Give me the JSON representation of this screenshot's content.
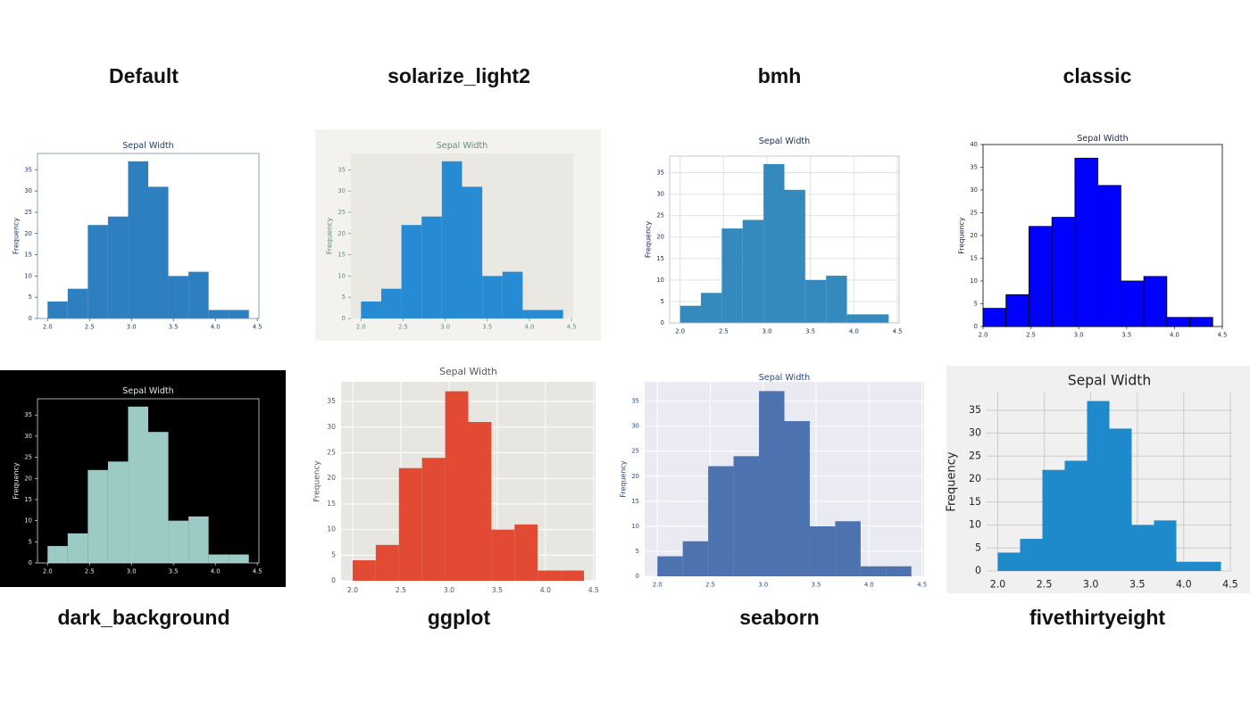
{
  "chart_data": [
    {
      "type": "histogram",
      "caption": "Default",
      "title": "Sepal Width",
      "ylabel": "Frequency",
      "bins": [
        2.0,
        2.24,
        2.48,
        2.72,
        2.96,
        3.2,
        3.44,
        3.68,
        3.92,
        4.16,
        4.4
      ],
      "values": [
        4,
        7,
        22,
        24,
        37,
        31,
        10,
        11,
        2,
        2
      ],
      "xlim": [
        1.88,
        4.52
      ],
      "ylim": [
        0,
        38.85
      ],
      "xticks": [
        {
          "value": 2,
          "label": "2.0"
        },
        {
          "value": 2.5,
          "label": "2.5"
        },
        {
          "value": 3,
          "label": "3.0"
        },
        {
          "value": 3.5,
          "label": "3.5"
        },
        {
          "value": 4,
          "label": "4.0"
        },
        {
          "value": 4.5,
          "label": "4.5"
        }
      ],
      "yticks": [
        0,
        5,
        10,
        15,
        20,
        25,
        30,
        35
      ],
      "grid": false,
      "color": "#2e7fc0",
      "edge_color": null,
      "figure_color": "#ffffff",
      "axes_color": "#ffffff",
      "text_color": "#1f3f66"
    },
    {
      "type": "histogram",
      "caption": "solarize_light2",
      "title": "Sepal Width",
      "ylabel": "Frequency",
      "bins": [
        2.0,
        2.24,
        2.48,
        2.72,
        2.96,
        3.2,
        3.44,
        3.68,
        3.92,
        4.16,
        4.4
      ],
      "values": [
        4,
        7,
        22,
        24,
        37,
        31,
        10,
        11,
        2,
        2
      ],
      "xlim": [
        1.88,
        4.52
      ],
      "ylim": [
        0,
        38.85
      ],
      "xticks": [
        {
          "value": 2,
          "label": "2.0"
        },
        {
          "value": 2.5,
          "label": "2.5"
        },
        {
          "value": 3,
          "label": "3.0"
        },
        {
          "value": 3.5,
          "label": "3.5"
        },
        {
          "value": 4,
          "label": "4.0"
        },
        {
          "value": 4.5,
          "label": "4.5"
        }
      ],
      "yticks": [
        0,
        5,
        10,
        15,
        20,
        25,
        30,
        35
      ],
      "grid": false,
      "color": "#268bd2",
      "edge_color": null,
      "figure_color": "#f3f2ee",
      "axes_color": "#eae8e2",
      "text_color": "#5c8f84"
    },
    {
      "type": "histogram",
      "caption": "bmh",
      "title": "Sepal Width",
      "ylabel": "Frequency",
      "bins": [
        2.0,
        2.24,
        2.48,
        2.72,
        2.96,
        3.2,
        3.44,
        3.68,
        3.92,
        4.16,
        4.4
      ],
      "values": [
        4,
        7,
        22,
        24,
        37,
        31,
        10,
        11,
        2,
        2
      ],
      "xlim": [
        1.88,
        4.52
      ],
      "ylim": [
        0,
        38.85
      ],
      "xticks": [
        {
          "value": 2,
          "label": "2.0"
        },
        {
          "value": 2.5,
          "label": "2.5"
        },
        {
          "value": 3,
          "label": "3.0"
        },
        {
          "value": 3.5,
          "label": "3.5"
        },
        {
          "value": 4,
          "label": "4.0"
        },
        {
          "value": 4.5,
          "label": "4.5"
        }
      ],
      "yticks": [
        0,
        5,
        10,
        15,
        20,
        25,
        30,
        35
      ],
      "grid": true,
      "color": "#348abd",
      "edge_color": null,
      "figure_color": "#ffffff",
      "axes_color": "#ffffff",
      "text_color": "#1a2a4a",
      "grid_color": "#e2e2e2"
    },
    {
      "type": "histogram",
      "caption": "classic",
      "title": "Sepal Width",
      "ylabel": "Frequency",
      "bins": [
        2.0,
        2.24,
        2.48,
        2.72,
        2.96,
        3.2,
        3.44,
        3.68,
        3.92,
        4.16,
        4.4
      ],
      "values": [
        4,
        7,
        22,
        24,
        37,
        31,
        10,
        11,
        2,
        2
      ],
      "xlim": [
        2.0,
        4.5
      ],
      "ylim": [
        0,
        40
      ],
      "xticks": [
        {
          "value": 2,
          "label": "2.0"
        },
        {
          "value": 2.5,
          "label": "2.5"
        },
        {
          "value": 3,
          "label": "3.0"
        },
        {
          "value": 3.5,
          "label": "3.5"
        },
        {
          "value": 4,
          "label": "4.0"
        },
        {
          "value": 4.5,
          "label": "4.5"
        }
      ],
      "yticks": [
        0,
        5,
        10,
        15,
        20,
        25,
        30,
        35,
        40
      ],
      "grid": false,
      "color": "#0000ff",
      "edge_color": "#000000",
      "figure_color": "#ffffff",
      "axes_color": "#ffffff",
      "text_color": "#1a2a4a"
    },
    {
      "type": "histogram",
      "caption": "dark_background",
      "title": "Sepal Width",
      "ylabel": "Frequency",
      "bins": [
        2.0,
        2.24,
        2.48,
        2.72,
        2.96,
        3.2,
        3.44,
        3.68,
        3.92,
        4.16,
        4.4
      ],
      "values": [
        4,
        7,
        22,
        24,
        37,
        31,
        10,
        11,
        2,
        2
      ],
      "xlim": [
        1.88,
        4.52
      ],
      "ylim": [
        0,
        38.85
      ],
      "xticks": [
        {
          "value": 2,
          "label": "2.0"
        },
        {
          "value": 2.5,
          "label": "2.5"
        },
        {
          "value": 3,
          "label": "3.0"
        },
        {
          "value": 3.5,
          "label": "3.5"
        },
        {
          "value": 4,
          "label": "4.0"
        },
        {
          "value": 4.5,
          "label": "4.5"
        }
      ],
      "yticks": [
        0,
        5,
        10,
        15,
        20,
        25,
        30,
        35
      ],
      "grid": false,
      "color": "#9ccbc5",
      "edge_color": null,
      "figure_color": "#000000",
      "axes_color": "#000000",
      "text_color": "#dfe8f0"
    },
    {
      "type": "histogram",
      "caption": "ggplot",
      "title": "Sepal Width",
      "ylabel": "Frequency",
      "bins": [
        2.0,
        2.24,
        2.48,
        2.72,
        2.96,
        3.2,
        3.44,
        3.68,
        3.92,
        4.16,
        4.4
      ],
      "values": [
        4,
        7,
        22,
        24,
        37,
        31,
        10,
        11,
        2,
        2
      ],
      "xlim": [
        1.88,
        4.52
      ],
      "ylim": [
        0,
        38.85
      ],
      "xticks": [
        {
          "value": 2,
          "label": "2.0"
        },
        {
          "value": 2.5,
          "label": "2.5"
        },
        {
          "value": 3,
          "label": "3.0"
        },
        {
          "value": 3.5,
          "label": "3.5"
        },
        {
          "value": 4,
          "label": "4.0"
        },
        {
          "value": 4.5,
          "label": "4.5"
        }
      ],
      "yticks": [
        0,
        5,
        10,
        15,
        20,
        25,
        30,
        35
      ],
      "grid": true,
      "color": "#e24a33",
      "edge_color": null,
      "figure_color": "#ffffff",
      "axes_color": "#e8e6e1",
      "text_color": "#555555",
      "grid_color": "#ffffff"
    },
    {
      "type": "histogram",
      "caption": "seaborn",
      "title": "Sepal Width",
      "ylabel": "Frequency",
      "bins": [
        2.0,
        2.24,
        2.48,
        2.72,
        2.96,
        3.2,
        3.44,
        3.68,
        3.92,
        4.16,
        4.4
      ],
      "values": [
        4,
        7,
        22,
        24,
        37,
        31,
        10,
        11,
        2,
        2
      ],
      "xlim": [
        1.88,
        4.52
      ],
      "ylim": [
        0,
        38.85
      ],
      "xticks": [
        {
          "value": 2,
          "label": "2.0"
        },
        {
          "value": 2.5,
          "label": "2.5"
        },
        {
          "value": 3,
          "label": "3.0"
        },
        {
          "value": 3.5,
          "label": "3.5"
        },
        {
          "value": 4,
          "label": "4.0"
        },
        {
          "value": 4.5,
          "label": "4.5"
        }
      ],
      "yticks": [
        0,
        5,
        10,
        15,
        20,
        25,
        30,
        35
      ],
      "grid": true,
      "color": "#4c72b0",
      "edge_color": null,
      "figure_color": "#ffffff",
      "axes_color": "#eaeaf2",
      "text_color": "#2a4a7a",
      "grid_color": "#ffffff"
    },
    {
      "type": "histogram",
      "caption": "fivethirtyeight",
      "title": "Sepal Width",
      "ylabel": "Frequency",
      "bins": [
        2.0,
        2.24,
        2.48,
        2.72,
        2.96,
        3.2,
        3.44,
        3.68,
        3.92,
        4.16,
        4.4
      ],
      "values": [
        4,
        7,
        22,
        24,
        37,
        31,
        10,
        11,
        2,
        2
      ],
      "xlim": [
        1.88,
        4.52
      ],
      "ylim": [
        0,
        38.85
      ],
      "xticks": [
        {
          "value": 2,
          "label": "2.0"
        },
        {
          "value": 2.5,
          "label": "2.5"
        },
        {
          "value": 3,
          "label": "3.0"
        },
        {
          "value": 3.5,
          "label": "3.5"
        },
        {
          "value": 4,
          "label": "4.0"
        },
        {
          "value": 4.5,
          "label": "4.5"
        }
      ],
      "yticks": [
        0,
        5,
        10,
        15,
        20,
        25,
        30,
        35
      ],
      "grid": true,
      "color": "#1f8acb",
      "edge_color": null,
      "figure_color": "#f0f0f0",
      "axes_color": "#f0f0f0",
      "text_color": "#222222",
      "grid_color": "#cbcbcb"
    }
  ]
}
